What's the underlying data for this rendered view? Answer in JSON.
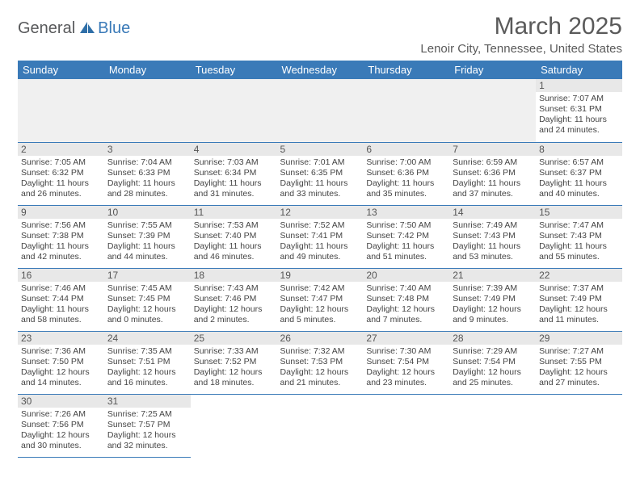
{
  "logo": {
    "text_general": "General",
    "text_blue": "Blue",
    "sail_color": "#2f6fa8"
  },
  "header": {
    "month_title": "March 2025",
    "location": "Lenoir City, Tennessee, United States"
  },
  "colors": {
    "header_bg": "#3a7ab8",
    "header_text": "#ffffff",
    "day_num_bg": "#e8e8e8",
    "border": "#3a7ab8"
  },
  "day_names": [
    "Sunday",
    "Monday",
    "Tuesday",
    "Wednesday",
    "Thursday",
    "Friday",
    "Saturday"
  ],
  "calendar": {
    "leading_empty": 6,
    "trailing_empty": 5,
    "days": [
      {
        "n": "1",
        "sunrise": "Sunrise: 7:07 AM",
        "sunset": "Sunset: 6:31 PM",
        "daylight": "Daylight: 11 hours and 24 minutes."
      },
      {
        "n": "2",
        "sunrise": "Sunrise: 7:05 AM",
        "sunset": "Sunset: 6:32 PM",
        "daylight": "Daylight: 11 hours and 26 minutes."
      },
      {
        "n": "3",
        "sunrise": "Sunrise: 7:04 AM",
        "sunset": "Sunset: 6:33 PM",
        "daylight": "Daylight: 11 hours and 28 minutes."
      },
      {
        "n": "4",
        "sunrise": "Sunrise: 7:03 AM",
        "sunset": "Sunset: 6:34 PM",
        "daylight": "Daylight: 11 hours and 31 minutes."
      },
      {
        "n": "5",
        "sunrise": "Sunrise: 7:01 AM",
        "sunset": "Sunset: 6:35 PM",
        "daylight": "Daylight: 11 hours and 33 minutes."
      },
      {
        "n": "6",
        "sunrise": "Sunrise: 7:00 AM",
        "sunset": "Sunset: 6:36 PM",
        "daylight": "Daylight: 11 hours and 35 minutes."
      },
      {
        "n": "7",
        "sunrise": "Sunrise: 6:59 AM",
        "sunset": "Sunset: 6:36 PM",
        "daylight": "Daylight: 11 hours and 37 minutes."
      },
      {
        "n": "8",
        "sunrise": "Sunrise: 6:57 AM",
        "sunset": "Sunset: 6:37 PM",
        "daylight": "Daylight: 11 hours and 40 minutes."
      },
      {
        "n": "9",
        "sunrise": "Sunrise: 7:56 AM",
        "sunset": "Sunset: 7:38 PM",
        "daylight": "Daylight: 11 hours and 42 minutes."
      },
      {
        "n": "10",
        "sunrise": "Sunrise: 7:55 AM",
        "sunset": "Sunset: 7:39 PM",
        "daylight": "Daylight: 11 hours and 44 minutes."
      },
      {
        "n": "11",
        "sunrise": "Sunrise: 7:53 AM",
        "sunset": "Sunset: 7:40 PM",
        "daylight": "Daylight: 11 hours and 46 minutes."
      },
      {
        "n": "12",
        "sunrise": "Sunrise: 7:52 AM",
        "sunset": "Sunset: 7:41 PM",
        "daylight": "Daylight: 11 hours and 49 minutes."
      },
      {
        "n": "13",
        "sunrise": "Sunrise: 7:50 AM",
        "sunset": "Sunset: 7:42 PM",
        "daylight": "Daylight: 11 hours and 51 minutes."
      },
      {
        "n": "14",
        "sunrise": "Sunrise: 7:49 AM",
        "sunset": "Sunset: 7:43 PM",
        "daylight": "Daylight: 11 hours and 53 minutes."
      },
      {
        "n": "15",
        "sunrise": "Sunrise: 7:47 AM",
        "sunset": "Sunset: 7:43 PM",
        "daylight": "Daylight: 11 hours and 55 minutes."
      },
      {
        "n": "16",
        "sunrise": "Sunrise: 7:46 AM",
        "sunset": "Sunset: 7:44 PM",
        "daylight": "Daylight: 11 hours and 58 minutes."
      },
      {
        "n": "17",
        "sunrise": "Sunrise: 7:45 AM",
        "sunset": "Sunset: 7:45 PM",
        "daylight": "Daylight: 12 hours and 0 minutes."
      },
      {
        "n": "18",
        "sunrise": "Sunrise: 7:43 AM",
        "sunset": "Sunset: 7:46 PM",
        "daylight": "Daylight: 12 hours and 2 minutes."
      },
      {
        "n": "19",
        "sunrise": "Sunrise: 7:42 AM",
        "sunset": "Sunset: 7:47 PM",
        "daylight": "Daylight: 12 hours and 5 minutes."
      },
      {
        "n": "20",
        "sunrise": "Sunrise: 7:40 AM",
        "sunset": "Sunset: 7:48 PM",
        "daylight": "Daylight: 12 hours and 7 minutes."
      },
      {
        "n": "21",
        "sunrise": "Sunrise: 7:39 AM",
        "sunset": "Sunset: 7:49 PM",
        "daylight": "Daylight: 12 hours and 9 minutes."
      },
      {
        "n": "22",
        "sunrise": "Sunrise: 7:37 AM",
        "sunset": "Sunset: 7:49 PM",
        "daylight": "Daylight: 12 hours and 11 minutes."
      },
      {
        "n": "23",
        "sunrise": "Sunrise: 7:36 AM",
        "sunset": "Sunset: 7:50 PM",
        "daylight": "Daylight: 12 hours and 14 minutes."
      },
      {
        "n": "24",
        "sunrise": "Sunrise: 7:35 AM",
        "sunset": "Sunset: 7:51 PM",
        "daylight": "Daylight: 12 hours and 16 minutes."
      },
      {
        "n": "25",
        "sunrise": "Sunrise: 7:33 AM",
        "sunset": "Sunset: 7:52 PM",
        "daylight": "Daylight: 12 hours and 18 minutes."
      },
      {
        "n": "26",
        "sunrise": "Sunrise: 7:32 AM",
        "sunset": "Sunset: 7:53 PM",
        "daylight": "Daylight: 12 hours and 21 minutes."
      },
      {
        "n": "27",
        "sunrise": "Sunrise: 7:30 AM",
        "sunset": "Sunset: 7:54 PM",
        "daylight": "Daylight: 12 hours and 23 minutes."
      },
      {
        "n": "28",
        "sunrise": "Sunrise: 7:29 AM",
        "sunset": "Sunset: 7:54 PM",
        "daylight": "Daylight: 12 hours and 25 minutes."
      },
      {
        "n": "29",
        "sunrise": "Sunrise: 7:27 AM",
        "sunset": "Sunset: 7:55 PM",
        "daylight": "Daylight: 12 hours and 27 minutes."
      },
      {
        "n": "30",
        "sunrise": "Sunrise: 7:26 AM",
        "sunset": "Sunset: 7:56 PM",
        "daylight": "Daylight: 12 hours and 30 minutes."
      },
      {
        "n": "31",
        "sunrise": "Sunrise: 7:25 AM",
        "sunset": "Sunset: 7:57 PM",
        "daylight": "Daylight: 12 hours and 32 minutes."
      }
    ]
  }
}
